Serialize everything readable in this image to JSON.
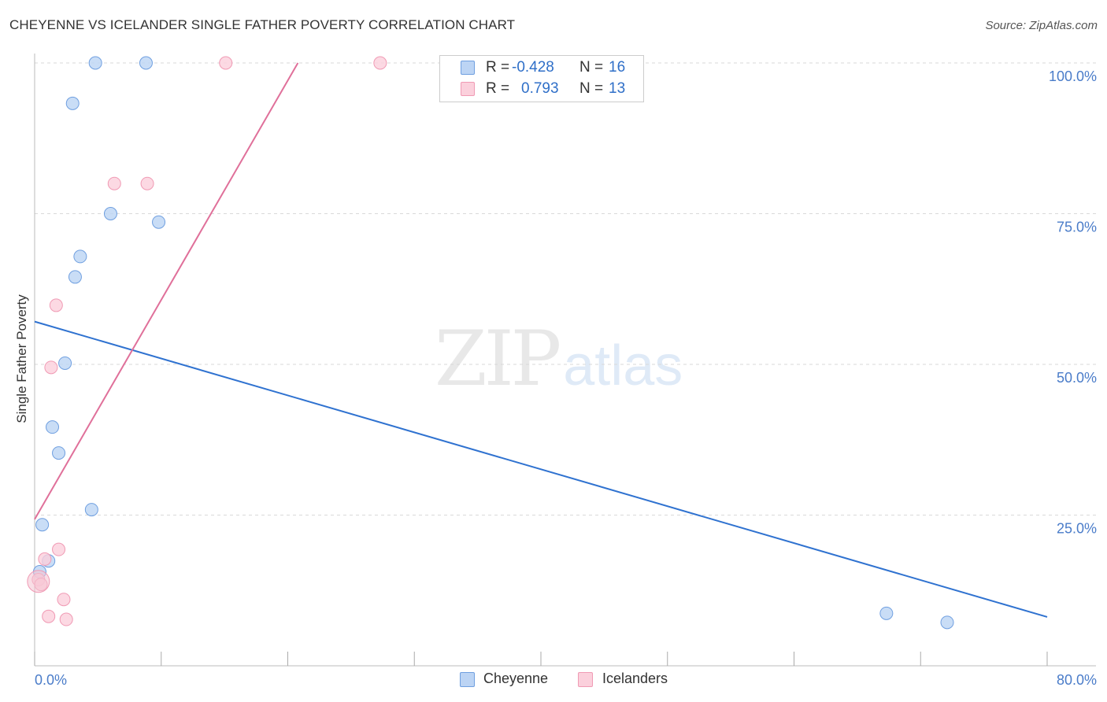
{
  "header": {
    "title": "CHEYENNE VS ICELANDER SINGLE FATHER POVERTY CORRELATION CHART",
    "source": "Source: ZipAtlas.com"
  },
  "watermark": {
    "zip": "ZIP",
    "atlas": "atlas"
  },
  "legend": {
    "rows": [
      {
        "r_label": "R =",
        "r_value": "-0.428",
        "n_label": "N =",
        "n_value": "16"
      },
      {
        "r_label": "R =",
        "r_value": "0.793",
        "n_label": "N =",
        "n_value": "13"
      }
    ]
  },
  "bottom_legend": {
    "cheyenne": "Cheyenne",
    "icelanders": "Icelanders"
  },
  "chart_data": {
    "type": "scatter",
    "title": "CHEYENNE VS ICELANDER SINGLE FATHER POVERTY CORRELATION CHART",
    "xlabel": "",
    "ylabel": "Single Father Poverty",
    "xlim": [
      0,
      80
    ],
    "ylim": [
      0,
      100
    ],
    "x_tick_labels": [
      "0.0%",
      "80.0%"
    ],
    "y_ticks": [
      25,
      50,
      75,
      100
    ],
    "y_tick_labels": [
      "25.0%",
      "50.0%",
      "75.0%",
      "100.0%"
    ],
    "grid": true,
    "series": [
      {
        "name": "Cheyenne",
        "color": "#6f9fe0",
        "fill": "#bcd4f4",
        "line_color": "#2f72d0",
        "points": [
          {
            "x": 4.8,
            "y": 100.0
          },
          {
            "x": 8.8,
            "y": 100.0
          },
          {
            "x": 3.0,
            "y": 93.3
          },
          {
            "x": 6.0,
            "y": 75.0
          },
          {
            "x": 9.8,
            "y": 73.6
          },
          {
            "x": 3.6,
            "y": 67.9
          },
          {
            "x": 3.2,
            "y": 64.5
          },
          {
            "x": 2.4,
            "y": 50.2
          },
          {
            "x": 1.4,
            "y": 39.6
          },
          {
            "x": 1.9,
            "y": 35.3
          },
          {
            "x": 4.5,
            "y": 25.9
          },
          {
            "x": 0.6,
            "y": 23.4
          },
          {
            "x": 1.1,
            "y": 17.4
          },
          {
            "x": 0.4,
            "y": 15.6
          },
          {
            "x": 67.3,
            "y": 8.7
          },
          {
            "x": 72.1,
            "y": 7.2
          }
        ],
        "trend": {
          "x0": 0,
          "y0": 57.1,
          "x1": 80,
          "y1": 8.1
        }
      },
      {
        "name": "Icelanders",
        "color": "#f09ab4",
        "fill": "#fbd0dc",
        "line_color": "#e0709a",
        "points": [
          {
            "x": 15.1,
            "y": 100.0
          },
          {
            "x": 27.3,
            "y": 100.0
          },
          {
            "x": 6.3,
            "y": 80.0
          },
          {
            "x": 8.9,
            "y": 80.0
          },
          {
            "x": 1.7,
            "y": 59.8
          },
          {
            "x": 1.3,
            "y": 49.5
          },
          {
            "x": 1.9,
            "y": 19.3
          },
          {
            "x": 0.8,
            "y": 17.7
          },
          {
            "x": 0.3,
            "y": 14.3
          },
          {
            "x": 0.5,
            "y": 13.5
          },
          {
            "x": 2.3,
            "y": 11.0
          },
          {
            "x": 1.1,
            "y": 8.2
          },
          {
            "x": 2.5,
            "y": 7.7
          }
        ],
        "trend": {
          "x0": 0,
          "y0": 24.3,
          "x1": 20.8,
          "y1": 100.0
        }
      }
    ]
  }
}
